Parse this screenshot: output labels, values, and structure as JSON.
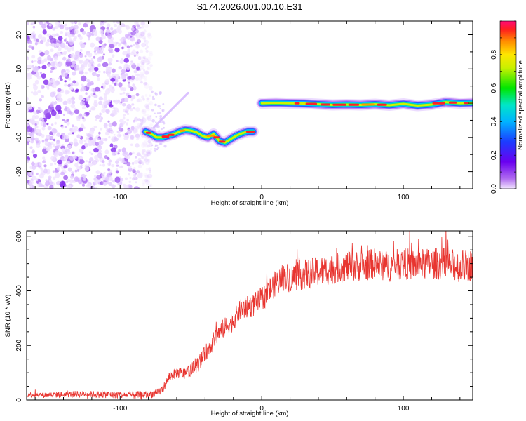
{
  "title": "S174.2026.001.00.10.E31",
  "chart_data": [
    {
      "type": "heatmap",
      "xlabel": "Height of straight line (km)",
      "ylabel": "Frequency (Hz)",
      "xlim": [
        -166,
        149
      ],
      "ylim": [
        -25,
        24
      ],
      "xticks": [
        -100,
        0,
        100
      ],
      "yticks": [
        -20,
        -10,
        0,
        10,
        20
      ],
      "colorbar": {
        "label": "Normalized spectral amplitude",
        "range": [
          0,
          1
        ],
        "ticks": [
          0.0,
          0.2,
          0.4,
          0.6,
          0.8
        ]
      },
      "noise_region": {
        "x": [
          -166,
          -78
        ],
        "description": "scattered noise"
      },
      "trace": {
        "x": [
          -82,
          -78,
          -74,
          -70,
          -66,
          -62,
          -58,
          -54,
          -50,
          -46,
          -42,
          -38,
          -34,
          -30,
          -26,
          -22,
          -18,
          -14,
          -10,
          -6,
          -4,
          0,
          10,
          20,
          30,
          40,
          50,
          60,
          70,
          80,
          90,
          100,
          110,
          120,
          130,
          140,
          149
        ],
        "y": [
          -8.3,
          -9.0,
          -10.0,
          -10.0,
          -9.5,
          -9.0,
          -8.3,
          -7.8,
          -8.0,
          -8.5,
          -9.5,
          -10.0,
          -9.0,
          -11.0,
          -11.5,
          -10.5,
          -9.5,
          -8.8,
          -8.3,
          -8.3,
          null,
          0.0,
          0.1,
          0.0,
          -0.1,
          -0.3,
          -0.5,
          -0.4,
          -0.5,
          -0.3,
          -0.6,
          -0.2,
          -0.7,
          -0.4,
          0.3,
          0.0,
          0.1
        ]
      },
      "branch": {
        "x": [
          -76,
          -52
        ],
        "y": [
          -7,
          3
        ]
      }
    },
    {
      "type": "line",
      "xlabel": "Height of straight line (km)",
      "ylabel": "SNR (10 * v/v)",
      "xlim": [
        -166,
        149
      ],
      "ylim": [
        0,
        620
      ],
      "xticks": [
        -100,
        0,
        100
      ],
      "yticks": [
        0,
        200,
        400,
        600
      ],
      "color": "#e83530",
      "series": [
        {
          "name": "SNR",
          "x": [
            -166,
            -150,
            -130,
            -110,
            -90,
            -80,
            -74,
            -70,
            -65,
            -60,
            -55,
            -50,
            -45,
            -40,
            -35,
            -30,
            -25,
            -20,
            -15,
            -10,
            -5,
            0,
            5,
            10,
            15,
            20,
            30,
            40,
            50,
            60,
            70,
            80,
            90,
            100,
            110,
            120,
            130,
            140,
            149
          ],
          "y": [
            20,
            18,
            22,
            20,
            18,
            20,
            25,
            40,
            85,
            100,
            95,
            110,
            130,
            170,
            210,
            250,
            270,
            290,
            330,
            340,
            350,
            370,
            400,
            430,
            450,
            450,
            460,
            470,
            480,
            490,
            490,
            500,
            490,
            500,
            495,
            500,
            500,
            490,
            495
          ]
        }
      ],
      "noise_amplitude": {
        "x": [
          -166,
          -70,
          -30,
          0,
          20,
          149
        ],
        "amp": [
          10,
          15,
          35,
          45,
          55,
          60
        ]
      }
    }
  ]
}
